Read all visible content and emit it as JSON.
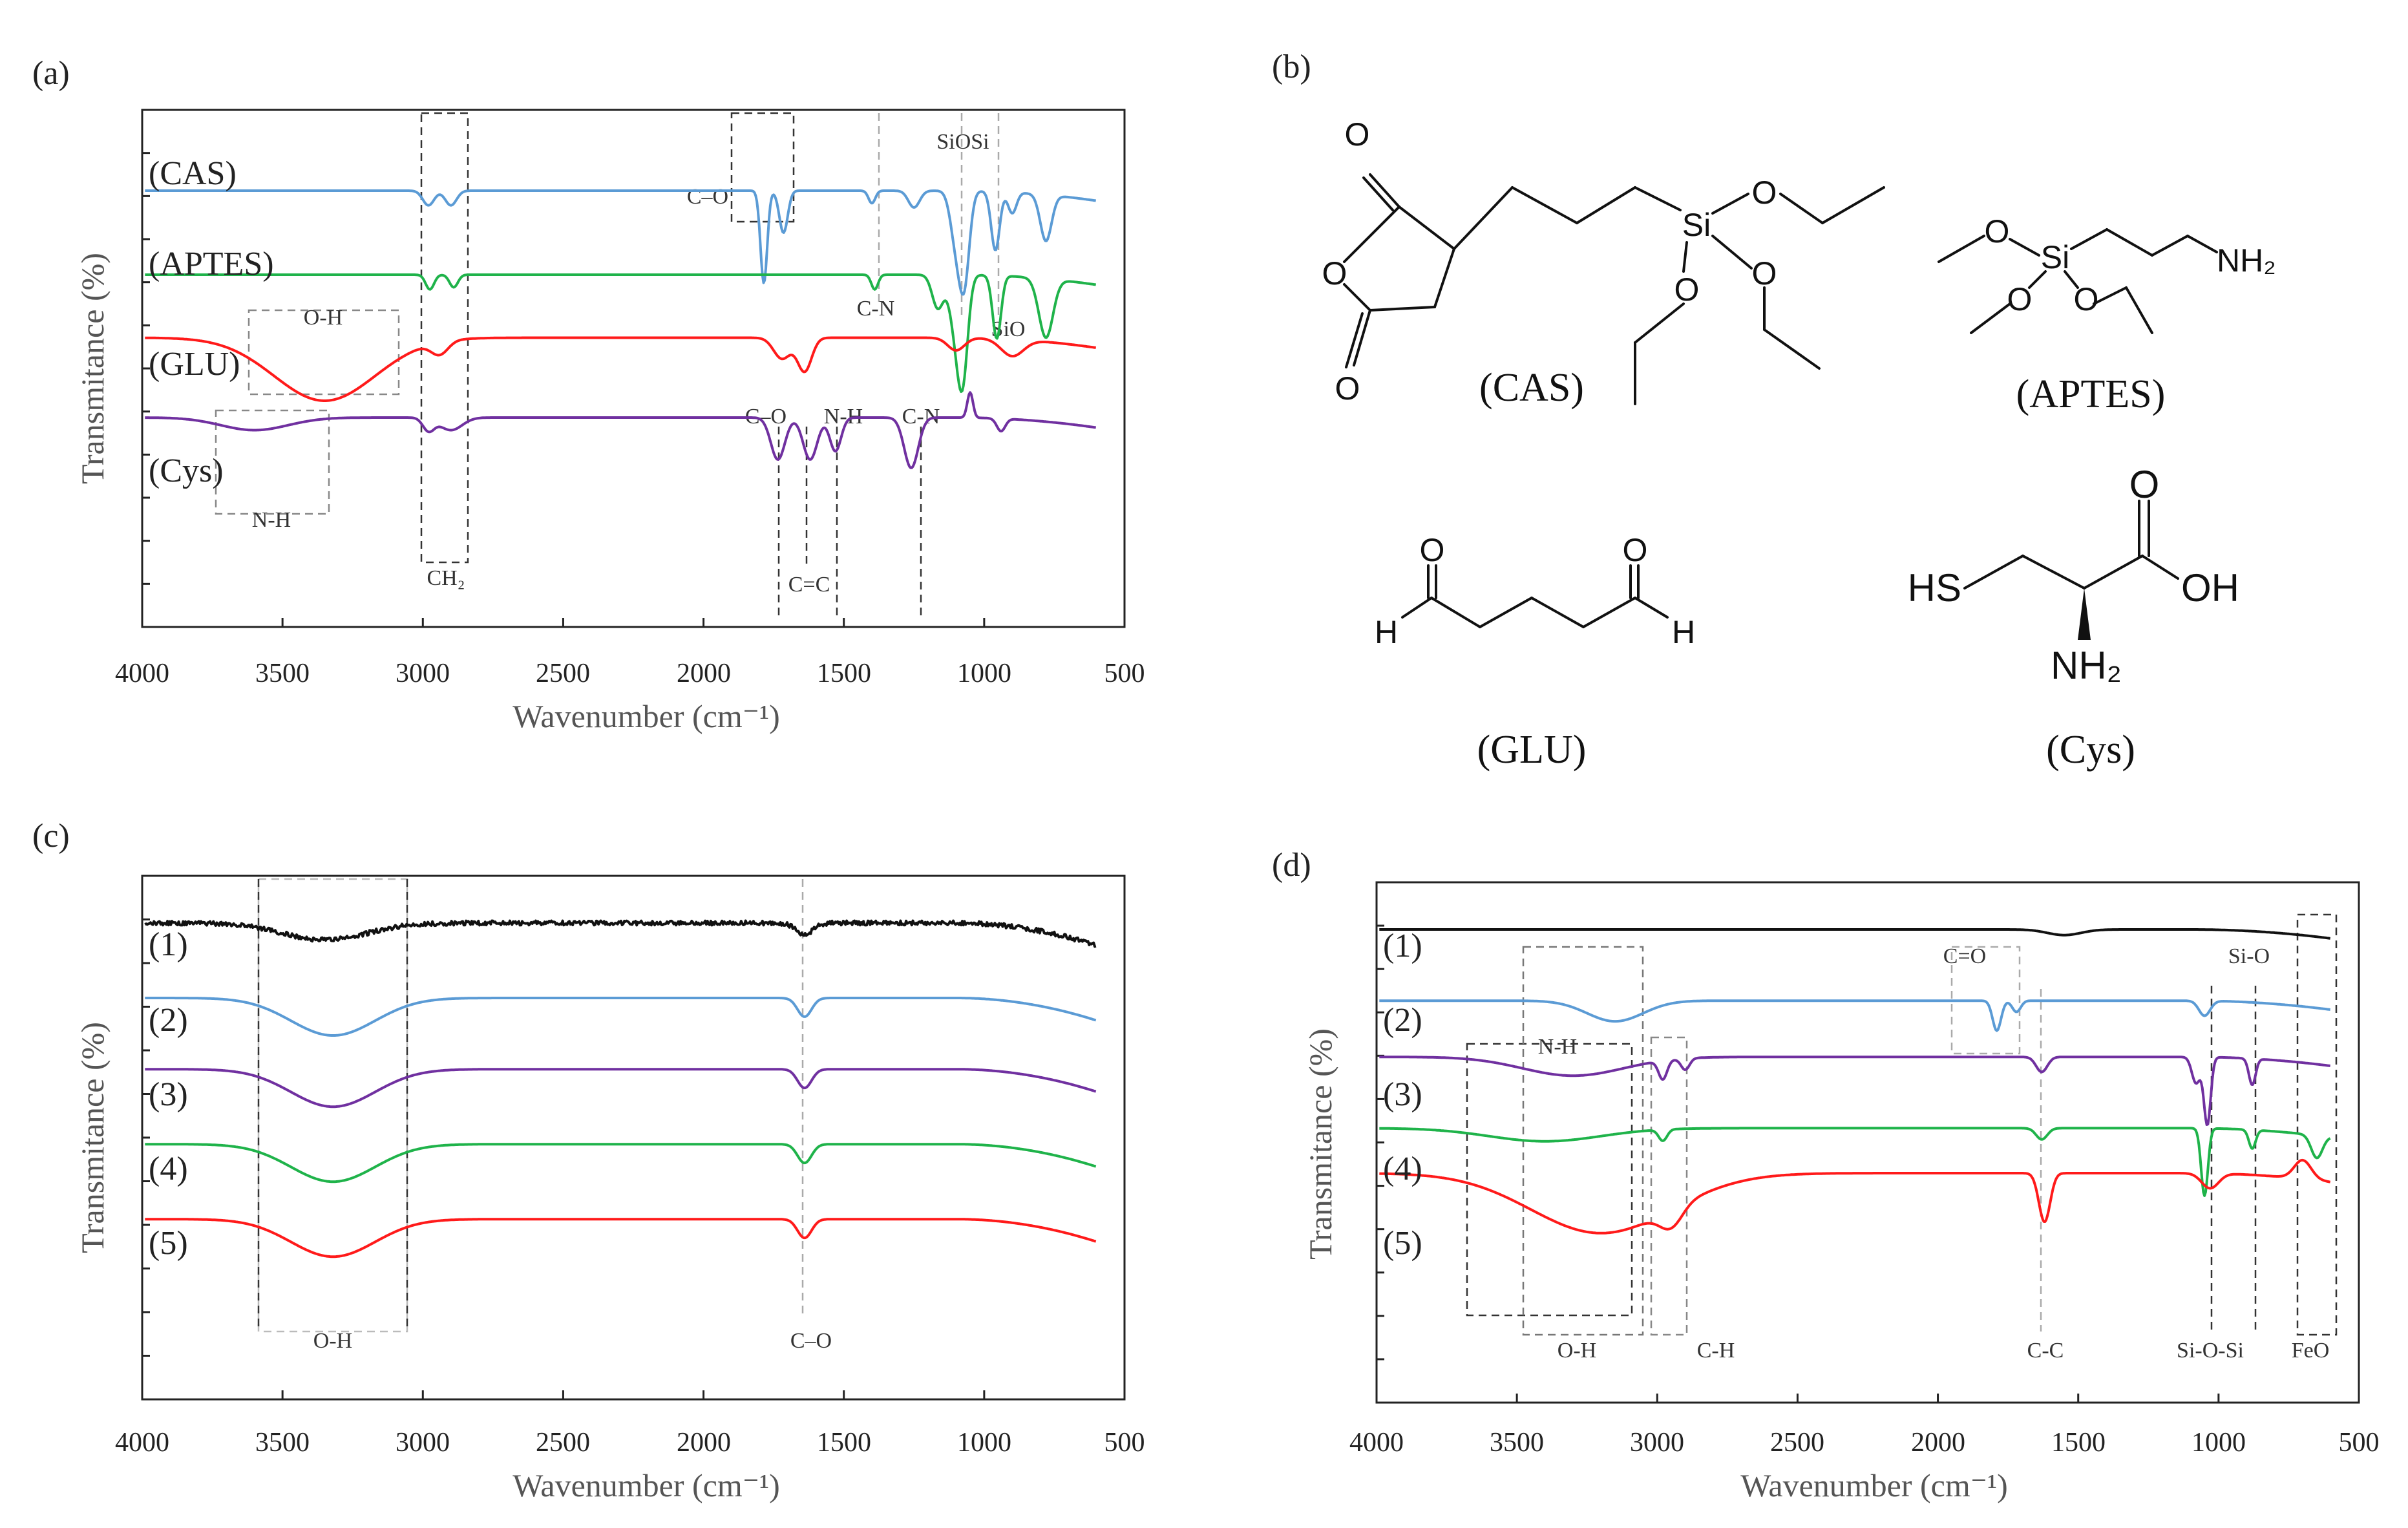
{
  "figure": {
    "panel_labels": {
      "a": "(a)",
      "b": "(b)",
      "c": "(c)",
      "d": "(d)"
    },
    "colors": {
      "black": "#111111",
      "blue": "#5b9bd5",
      "green": "#1fb34a",
      "red": "#ff1a1a",
      "purple": "#7030a0"
    }
  },
  "chart_data": [
    {
      "id": "a",
      "type": "line",
      "title": "",
      "xlabel": "Wavenumber (cm⁻¹)",
      "ylabel": "Transmitance (%)",
      "xlim": [
        4000,
        500
      ],
      "xticks": [
        "4000",
        "3500",
        "3000",
        "2500",
        "2000",
        "1500",
        "1000",
        "500"
      ],
      "series": [
        {
          "name": "(CAS)",
          "color": "blue",
          "base": 1.0,
          "x_end": 600,
          "dips": [
            [
              2980,
              0.35,
              20
            ],
            [
              2900,
              0.35,
              20
            ],
            [
              1785,
              2.2,
              12
            ],
            [
              1715,
              1.0,
              15
            ],
            [
              1400,
              0.3,
              12
            ],
            [
              1250,
              0.4,
              20
            ],
            [
              1100,
              1.2,
              20
            ],
            [
              1070,
              2.0,
              18
            ],
            [
              960,
              1.4,
              15
            ],
            [
              900,
              0.5,
              15
            ],
            [
              780,
              1.1,
              20
            ]
          ]
        },
        {
          "name": "(APTES)",
          "color": "green",
          "base": 3.0,
          "x_end": 600,
          "dips": [
            [
              2975,
              0.35,
              15
            ],
            [
              2890,
              0.3,
              15
            ],
            [
              1390,
              0.35,
              12
            ],
            [
              1165,
              0.8,
              20
            ],
            [
              1100,
              1.3,
              22
            ],
            [
              1075,
              2.0,
              18
            ],
            [
              955,
              1.5,
              15
            ],
            [
              780,
              1.4,
              25
            ]
          ]
        },
        {
          "name": "(GLU)",
          "color": "red",
          "base": 4.5,
          "x_end": 600,
          "dips": [
            [
              3350,
              1.5,
              180
            ],
            [
              2940,
              0.3,
              30
            ],
            [
              1720,
              0.5,
              30
            ],
            [
              1640,
              0.8,
              25
            ],
            [
              1100,
              0.3,
              30
            ],
            [
              900,
              0.4,
              40
            ]
          ]
        },
        {
          "name": "(Cys)",
          "color": "purple",
          "base": 6.4,
          "x_end": 600,
          "dips": [
            [
              3600,
              0.3,
              120
            ],
            [
              2980,
              0.3,
              20
            ],
            [
              2900,
              0.3,
              40
            ],
            [
              1735,
              1.0,
              25
            ],
            [
              1620,
              1.0,
              25
            ],
            [
              1530,
              0.8,
              20
            ],
            [
              1260,
              1.2,
              25
            ],
            [
              1050,
              -0.6,
              10
            ],
            [
              940,
              0.3,
              15
            ]
          ]
        }
      ],
      "annotations": {
        "ch2": "CH₂",
        "co1": "C–O",
        "sioSi": "SiOSi",
        "cn1": "C-N",
        "sio": "SiO",
        "oh": "O-H",
        "co2": "C–O",
        "nh1": "N-H",
        "cn2": "C-N",
        "nh2": "N-H",
        "cc": "C=C"
      }
    },
    {
      "id": "c",
      "type": "line",
      "title": "",
      "xlabel": "Wavenumber (cm⁻¹)",
      "ylabel": "Transmitance (%)",
      "xlim": [
        4000,
        500
      ],
      "xticks": [
        "4000",
        "3500",
        "3000",
        "2500",
        "2000",
        "1500",
        "1000",
        "500"
      ],
      "series": [
        {
          "name": "(1)",
          "color": "black",
          "base": 1.0,
          "x_end": 600,
          "dips": [
            [
              3350,
              0.45,
              150
            ],
            [
              1640,
              0.3,
              30
            ]
          ]
        },
        {
          "name": "(2)",
          "color": "blue",
          "base": 3.0,
          "x_end": 600,
          "dips": [
            [
              3320,
              1.0,
              150
            ],
            [
              1640,
              0.5,
              25
            ]
          ]
        },
        {
          "name": "(3)",
          "color": "purple",
          "base": 4.9,
          "x_end": 600,
          "dips": [
            [
              3320,
              1.0,
              150
            ],
            [
              1640,
              0.5,
              25
            ]
          ]
        },
        {
          "name": "(4)",
          "color": "green",
          "base": 6.9,
          "x_end": 600,
          "dips": [
            [
              3320,
              1.0,
              150
            ],
            [
              1640,
              0.5,
              25
            ]
          ]
        },
        {
          "name": "(5)",
          "color": "red",
          "base": 8.9,
          "x_end": 600,
          "dips": [
            [
              3320,
              1.0,
              150
            ],
            [
              1640,
              0.5,
              25
            ]
          ]
        }
      ],
      "annotations": {
        "oh": "O-H",
        "co": "C–O"
      }
    },
    {
      "id": "d",
      "type": "line",
      "title": "",
      "xlabel": "Wavenumber (cm⁻¹)",
      "ylabel": "Transmitance (%)",
      "xlim": [
        4000,
        500
      ],
      "xticks": [
        "4000",
        "3500",
        "3000",
        "2500",
        "2000",
        "1500",
        "1000",
        "500"
      ],
      "series": [
        {
          "name": "(1)",
          "color": "black",
          "base": 1.0,
          "x_end": 600,
          "dips": [
            [
              1550,
              0.15,
              60
            ]
          ]
        },
        {
          "name": "(2)",
          "color": "blue",
          "base": 2.9,
          "x_end": 600,
          "dips": [
            [
              3150,
              0.55,
              100
            ],
            [
              1790,
              0.8,
              15
            ],
            [
              1720,
              0.3,
              15
            ],
            [
              1050,
              0.4,
              20
            ]
          ]
        },
        {
          "name": "(3)",
          "color": "purple",
          "base": 4.4,
          "x_end": 600,
          "dips": [
            [
              3300,
              0.5,
              180
            ],
            [
              2980,
              0.5,
              15
            ],
            [
              2900,
              0.3,
              15
            ],
            [
              1630,
              0.4,
              20
            ],
            [
              1080,
              0.7,
              15
            ],
            [
              1040,
              1.8,
              12
            ],
            [
              880,
              0.7,
              12
            ]
          ]
        },
        {
          "name": "(4)",
          "color": "green",
          "base": 6.3,
          "x_end": 600,
          "dips": [
            [
              3400,
              0.35,
              200
            ],
            [
              2980,
              0.3,
              15
            ],
            [
              1630,
              0.3,
              20
            ],
            [
              1050,
              1.8,
              12
            ],
            [
              880,
              0.5,
              12
            ],
            [
              650,
              0.6,
              20
            ]
          ]
        },
        {
          "name": "(5)",
          "color": "red",
          "base": 7.5,
          "x_end": 600,
          "dips": [
            [
              3200,
              1.6,
              250
            ],
            [
              2950,
              0.5,
              40
            ],
            [
              1620,
              1.3,
              20
            ],
            [
              1030,
              0.4,
              30
            ],
            [
              700,
              -0.5,
              30
            ]
          ]
        }
      ],
      "annotations": {
        "nh": "N-H",
        "co": "C=O",
        "sio": "Si-O",
        "oh": "O-H",
        "ch": "C-H",
        "cc": "C-C",
        "siosi": "Si-O-Si",
        "feo": "FeO"
      }
    }
  ],
  "molecules": {
    "cas": {
      "label": "(CAS)",
      "atoms": {
        "o1": "O",
        "o2": "O",
        "o3": "O",
        "si": "Si",
        "o4": "O",
        "o5": "O",
        "o6": "O"
      }
    },
    "aptes": {
      "label": "(APTES)",
      "atoms": {
        "o1": "O",
        "si": "Si",
        "o2": "O",
        "o3": "O",
        "n": "NH₂"
      }
    },
    "glu": {
      "label": "(GLU)",
      "atoms": {
        "o1": "O",
        "o2": "O",
        "h1": "H",
        "h2": "H"
      }
    },
    "cys": {
      "label": "(Cys)",
      "atoms": {
        "o": "O",
        "hs": "HS",
        "oh": "OH",
        "nh2": "NH₂"
      }
    }
  }
}
